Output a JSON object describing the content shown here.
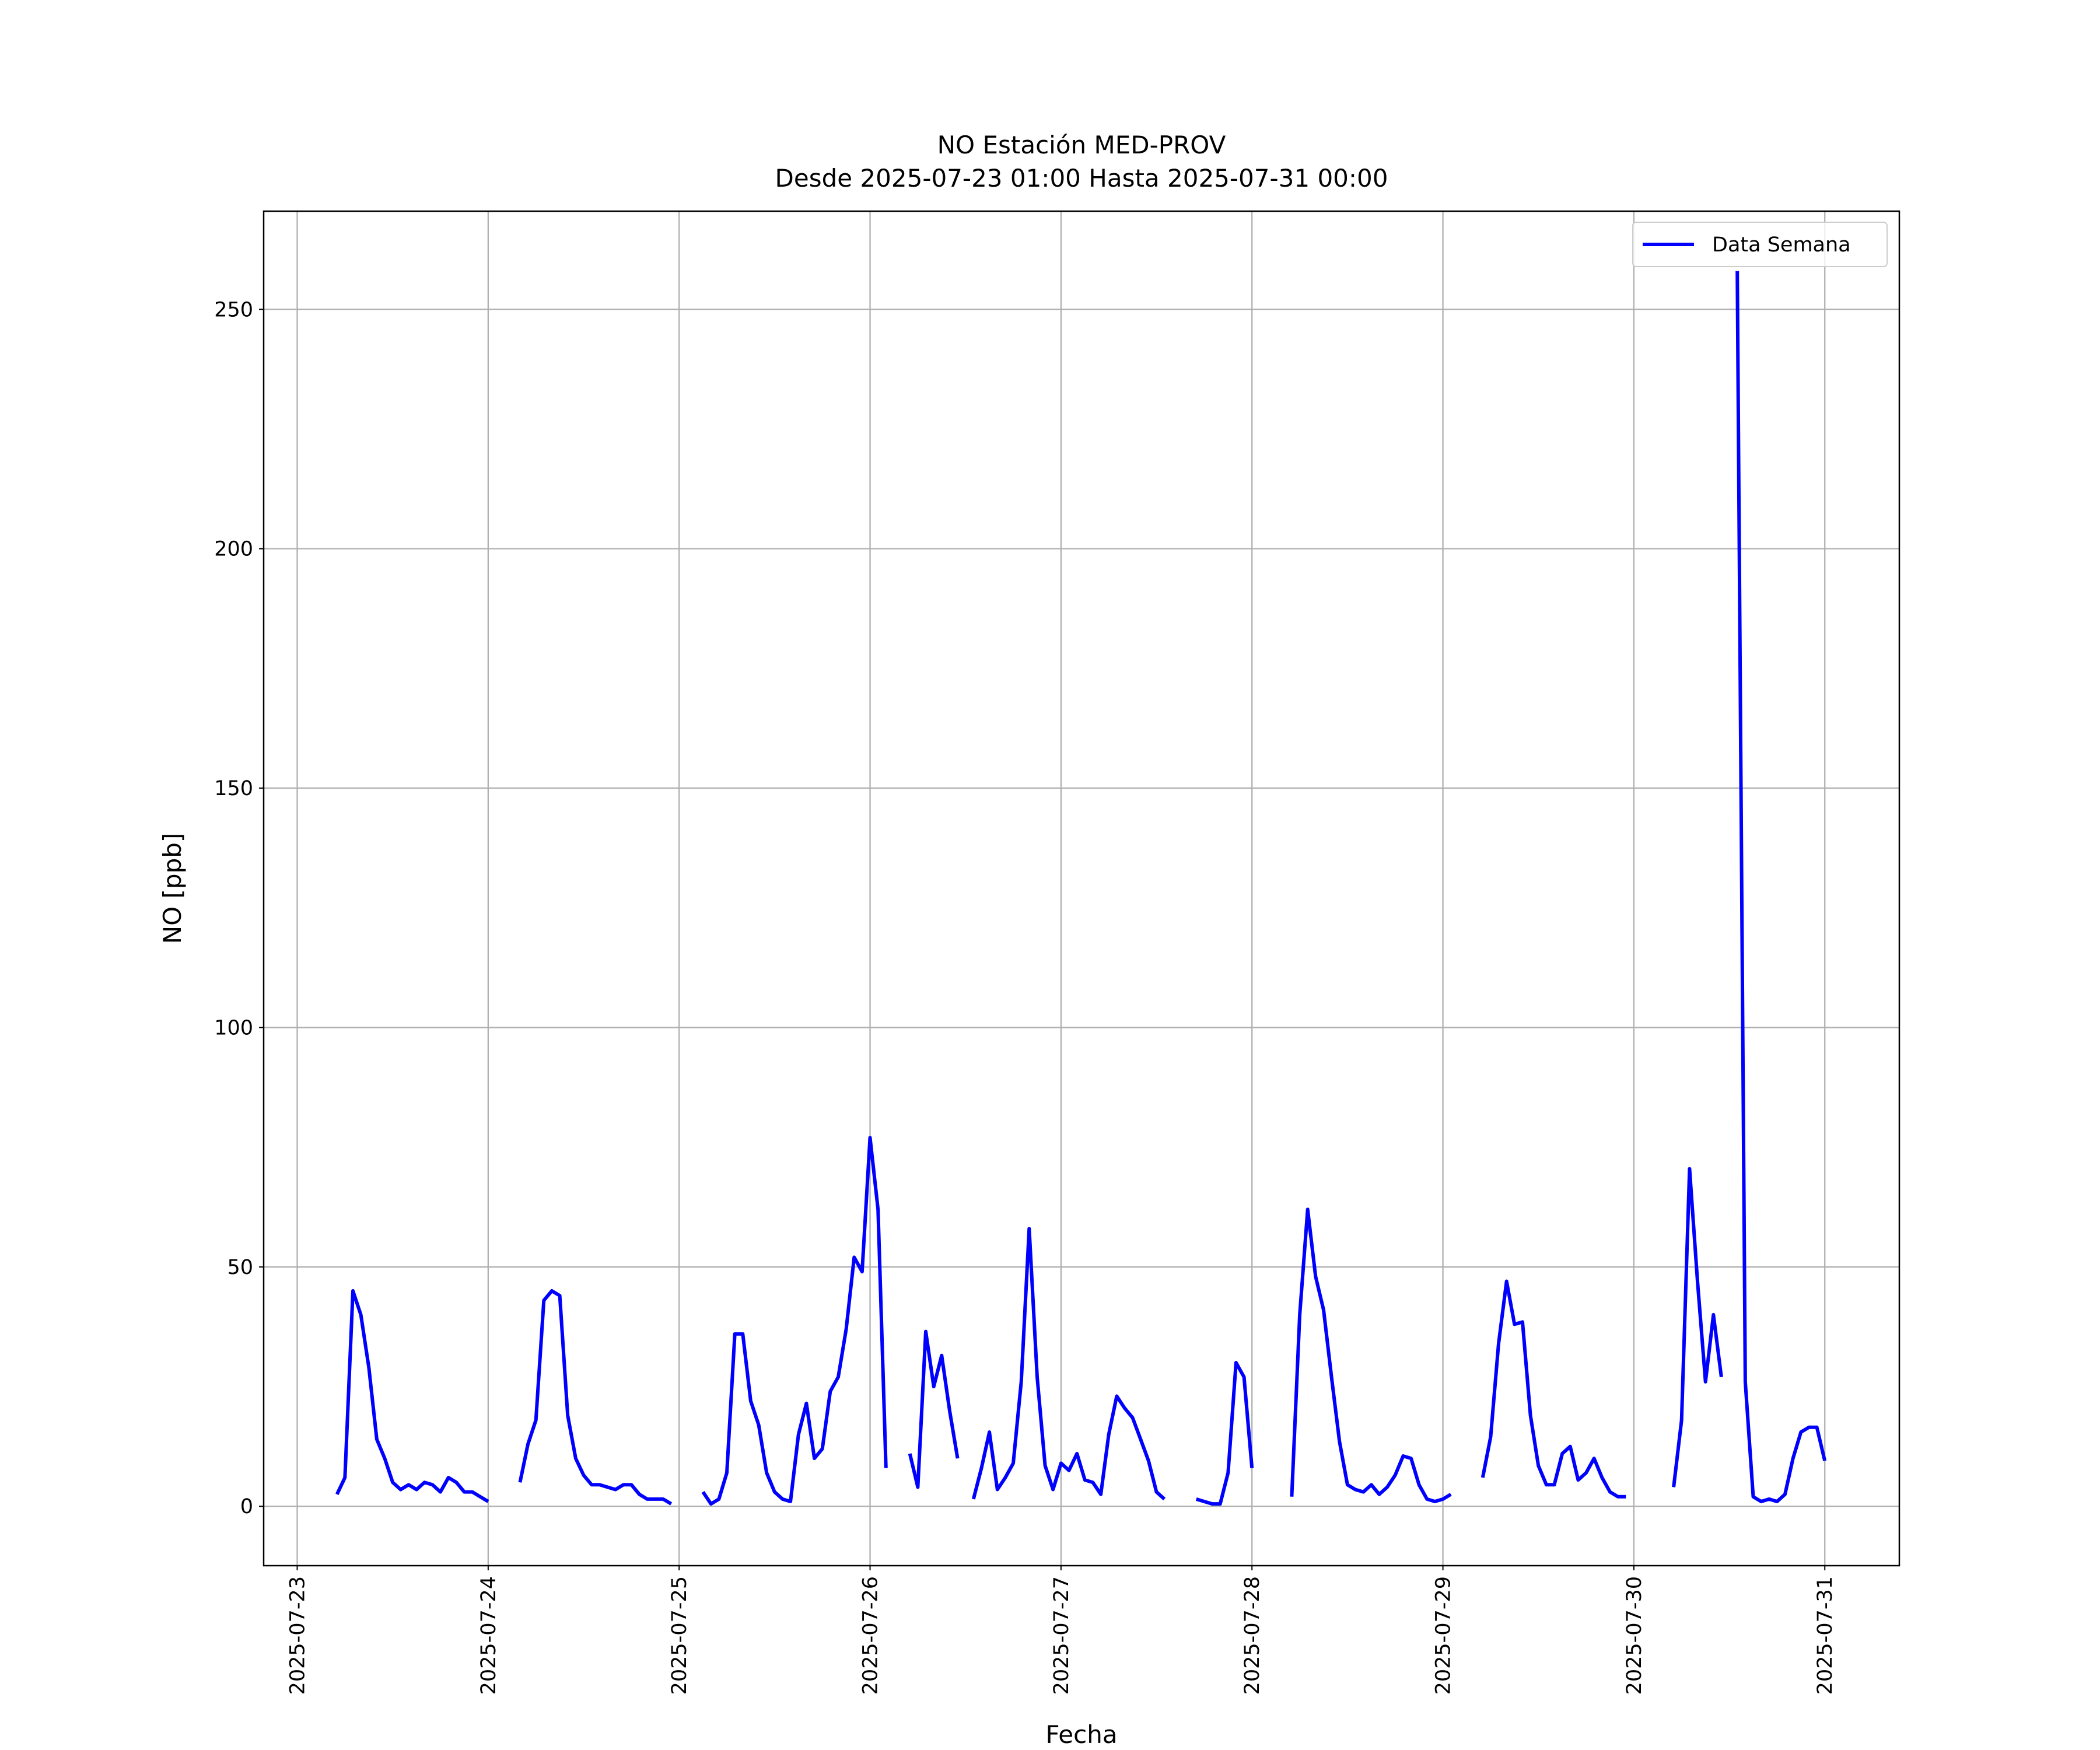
{
  "chart_data": {
    "type": "line",
    "title": "NO Estación MED-PROV",
    "subtitle": "Desde 2025-07-23 01:00 Hasta 2025-07-31 00:00",
    "x_label": "Fecha",
    "y_label": "NO [ppb]",
    "x": [
      "2025-07-23 05:00",
      "2025-07-23 06:00",
      "2025-07-23 07:00",
      "2025-07-23 08:00",
      "2025-07-23 09:00",
      "2025-07-23 10:00",
      "2025-07-23 11:00",
      "2025-07-23 12:00",
      "2025-07-23 13:00",
      "2025-07-23 14:00",
      "2025-07-23 15:00",
      "2025-07-23 16:00",
      "2025-07-23 17:00",
      "2025-07-23 18:00",
      "2025-07-23 19:00",
      "2025-07-23 20:00",
      "2025-07-23 21:00",
      "2025-07-23 22:00",
      "2025-07-23 23:00",
      "2025-07-24 00:00",
      "2025-07-24 01:00",
      "2025-07-24 04:00",
      "2025-07-24 05:00",
      "2025-07-24 06:00",
      "2025-07-24 07:00",
      "2025-07-24 08:00",
      "2025-07-24 09:00",
      "2025-07-24 10:00",
      "2025-07-24 11:00",
      "2025-07-24 12:00",
      "2025-07-24 13:00",
      "2025-07-24 14:00",
      "2025-07-24 15:00",
      "2025-07-24 16:00",
      "2025-07-24 17:00",
      "2025-07-24 18:00",
      "2025-07-24 19:00",
      "2025-07-24 20:00",
      "2025-07-24 21:00",
      "2025-07-24 22:00",
      "2025-07-24 23:00",
      "2025-07-25 00:00",
      "2025-07-25 03:00",
      "2025-07-25 04:00",
      "2025-07-25 05:00",
      "2025-07-25 06:00",
      "2025-07-25 07:00",
      "2025-07-25 08:00",
      "2025-07-25 09:00",
      "2025-07-25 10:00",
      "2025-07-25 11:00",
      "2025-07-25 12:00",
      "2025-07-25 13:00",
      "2025-07-25 14:00",
      "2025-07-25 15:00",
      "2025-07-25 16:00",
      "2025-07-25 17:00",
      "2025-07-25 18:00",
      "2025-07-25 19:00",
      "2025-07-25 20:00",
      "2025-07-25 21:00",
      "2025-07-25 22:00",
      "2025-07-25 23:00",
      "2025-07-26 00:00",
      "2025-07-26 01:00",
      "2025-07-26 02:00",
      "2025-07-26 03:00",
      "2025-07-26 05:00",
      "2025-07-26 06:00",
      "2025-07-26 07:00",
      "2025-07-26 08:00",
      "2025-07-26 09:00",
      "2025-07-26 10:00",
      "2025-07-26 11:00",
      "2025-07-26 12:00",
      "2025-07-26 13:00",
      "2025-07-26 14:00",
      "2025-07-26 15:00",
      "2025-07-26 16:00",
      "2025-07-26 17:00",
      "2025-07-26 18:00",
      "2025-07-26 19:00",
      "2025-07-26 20:00",
      "2025-07-26 21:00",
      "2025-07-26 22:00",
      "2025-07-26 23:00",
      "2025-07-27 00:00",
      "2025-07-27 01:00",
      "2025-07-27 02:00",
      "2025-07-27 03:00",
      "2025-07-27 04:00",
      "2025-07-27 05:00",
      "2025-07-27 06:00",
      "2025-07-27 07:00",
      "2025-07-27 08:00",
      "2025-07-27 09:00",
      "2025-07-27 10:00",
      "2025-07-27 11:00",
      "2025-07-27 12:00",
      "2025-07-27 13:00",
      "2025-07-27 14:00",
      "2025-07-27 17:00",
      "2025-07-27 18:00",
      "2025-07-27 19:00",
      "2025-07-27 20:00",
      "2025-07-27 21:00",
      "2025-07-27 22:00",
      "2025-07-27 23:00",
      "2025-07-28 00:00",
      "2025-07-28 01:00",
      "2025-07-28 05:00",
      "2025-07-28 06:00",
      "2025-07-28 07:00",
      "2025-07-28 08:00",
      "2025-07-28 09:00",
      "2025-07-28 10:00",
      "2025-07-28 11:00",
      "2025-07-28 12:00",
      "2025-07-28 13:00",
      "2025-07-28 14:00",
      "2025-07-28 15:00",
      "2025-07-28 16:00",
      "2025-07-28 17:00",
      "2025-07-28 18:00",
      "2025-07-28 19:00",
      "2025-07-28 20:00",
      "2025-07-28 21:00",
      "2025-07-28 22:00",
      "2025-07-28 23:00",
      "2025-07-29 00:00",
      "2025-07-29 01:00",
      "2025-07-29 02:00",
      "2025-07-29 05:00",
      "2025-07-29 06:00",
      "2025-07-29 07:00",
      "2025-07-29 08:00",
      "2025-07-29 09:00",
      "2025-07-29 10:00",
      "2025-07-29 11:00",
      "2025-07-29 12:00",
      "2025-07-29 13:00",
      "2025-07-29 14:00",
      "2025-07-29 15:00",
      "2025-07-29 16:00",
      "2025-07-29 17:00",
      "2025-07-29 18:00",
      "2025-07-29 19:00",
      "2025-07-29 20:00",
      "2025-07-29 21:00",
      "2025-07-29 22:00",
      "2025-07-29 23:00",
      "2025-07-30 00:00",
      "2025-07-30 05:00",
      "2025-07-30 06:00",
      "2025-07-30 07:00",
      "2025-07-30 08:00",
      "2025-07-30 09:00",
      "2025-07-30 10:00",
      "2025-07-30 11:00",
      "2025-07-30 12:00",
      "2025-07-30 13:00",
      "2025-07-30 14:00",
      "2025-07-30 15:00",
      "2025-07-30 16:00",
      "2025-07-30 17:00",
      "2025-07-30 18:00",
      "2025-07-30 19:00",
      "2025-07-30 20:00",
      "2025-07-30 21:00",
      "2025-07-30 22:00",
      "2025-07-30 23:00",
      "2025-07-31 00:00"
    ],
    "series": [
      {
        "name": "Data Semana",
        "color": "#0000ff",
        "values": [
          2.5,
          6,
          45,
          40,
          29,
          14,
          10,
          5,
          3.5,
          4.5,
          3.5,
          5,
          4.5,
          3,
          6,
          5,
          3,
          3,
          2,
          1,
          null,
          5,
          13,
          18,
          43,
          45,
          44,
          19,
          10,
          6.5,
          4.5,
          4.5,
          4,
          3.5,
          4.5,
          4.5,
          2.5,
          1.5,
          1.5,
          1.5,
          0.5,
          null,
          3,
          0.5,
          1.5,
          7,
          36,
          36,
          22,
          17,
          7,
          3,
          1.5,
          1,
          15,
          21.5,
          10,
          12,
          24,
          27,
          37,
          52,
          49,
          77,
          62,
          8,
          null,
          11,
          4,
          36.5,
          25,
          31.5,
          20,
          10,
          null,
          1.5,
          8,
          15.5,
          3.5,
          6,
          9,
          26,
          58,
          27,
          8.5,
          3.5,
          9,
          7.5,
          11,
          5.5,
          5,
          2.5,
          15,
          23,
          20.5,
          18.5,
          14,
          9.5,
          3,
          1.5,
          null,
          1.5,
          1,
          0.5,
          0.5,
          7,
          30,
          27,
          8,
          null,
          2,
          40,
          62,
          48,
          41,
          27,
          13.5,
          4.5,
          3.5,
          3,
          4.5,
          2.5,
          4,
          6.5,
          10.5,
          10,
          4.5,
          1.5,
          1,
          1.5,
          2.5,
          null,
          6,
          14.5,
          34,
          47,
          38,
          38.5,
          19,
          8.5,
          4.5,
          4.5,
          11,
          12.5,
          5.5,
          7,
          10,
          6,
          3,
          2,
          2,
          null,
          4,
          18,
          70.5,
          47,
          26,
          40,
          27,
          null,
          258,
          26,
          2,
          1,
          1.5,
          1,
          2.5,
          10,
          15.5,
          16.5,
          16.5,
          9.5
        ]
      }
    ],
    "xlim": [
      "2025-07-22 19:47",
      "2025-07-31 09:22"
    ],
    "xticks": [
      "2025-07-23",
      "2025-07-24",
      "2025-07-25",
      "2025-07-26",
      "2025-07-27",
      "2025-07-28",
      "2025-07-29",
      "2025-07-30",
      "2025-07-31"
    ],
    "ylim": [
      -12.4,
      270.5
    ],
    "yticks": [
      0,
      50,
      100,
      150,
      200,
      250
    ],
    "grid": true,
    "legend": "upper right"
  }
}
